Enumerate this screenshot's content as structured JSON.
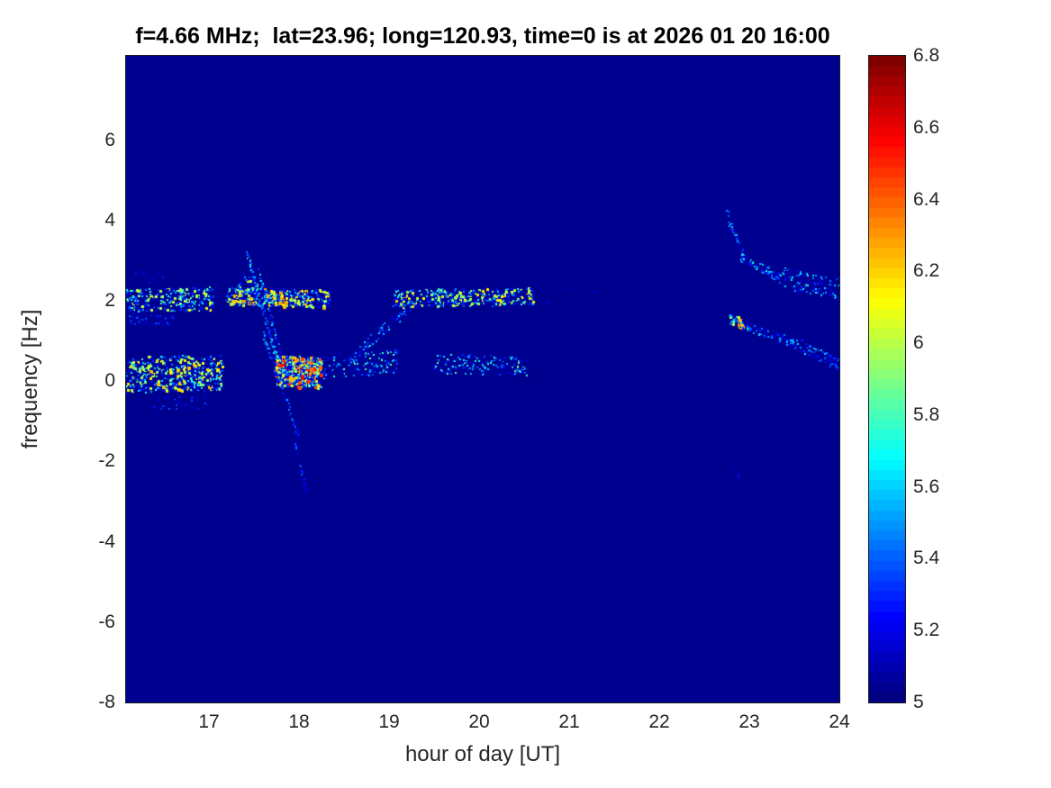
{
  "chart_data": {
    "type": "heatmap",
    "title": "f=4.66 MHz;  lat=23.96; long=120.93, time=0 is at 2026 01 20 16:00",
    "xlabel": "hour of day [UT]",
    "ylabel": "frequency [Hz]",
    "xlim": [
      16.08,
      24
    ],
    "ylim": [
      -8,
      8.1
    ],
    "xticks": [
      17,
      18,
      19,
      20,
      21,
      22,
      23,
      24
    ],
    "yticks": [
      -8,
      -6,
      -4,
      -2,
      0,
      2,
      4,
      6
    ],
    "grid": false,
    "colorbar": {
      "min": 5,
      "max": 6.8,
      "ticks": [
        5,
        5.2,
        5.4,
        5.6,
        5.8,
        6,
        6.2,
        6.4,
        6.6,
        6.8
      ],
      "colormap": "jet",
      "levels": 64
    },
    "background_value": 5,
    "background_color": "#00008f",
    "features": [
      {
        "x0": 16.08,
        "x1": 17.05,
        "y0": 2.0,
        "y1": 2.05,
        "jit": 0.28,
        "n": 450,
        "vmin": 5.05,
        "vmax": 6.15
      },
      {
        "x0": 16.08,
        "x1": 16.6,
        "y0": 1.55,
        "y1": 1.5,
        "jit": 0.15,
        "n": 70,
        "vmin": 5.05,
        "vmax": 5.45
      },
      {
        "x0": 16.15,
        "x1": 16.5,
        "y0": 2.6,
        "y1": 2.55,
        "jit": 0.15,
        "n": 18,
        "vmin": 5.05,
        "vmax": 5.3
      },
      {
        "x0": 16.08,
        "x1": 17.15,
        "y0": 0.15,
        "y1": 0.2,
        "jit": 0.45,
        "n": 700,
        "vmin": 5.05,
        "vmax": 6.25
      },
      {
        "x0": 16.3,
        "x1": 17.0,
        "y0": -0.6,
        "y1": -0.5,
        "jit": 0.2,
        "n": 60,
        "vmin": 5.05,
        "vmax": 5.4
      },
      {
        "x0": 17.2,
        "x1": 18.35,
        "y0": 2.1,
        "y1": 2.05,
        "jit": 0.22,
        "n": 450,
        "vmin": 5.1,
        "vmax": 6.3
      },
      {
        "x0": 17.32,
        "x1": 17.55,
        "y0": 2.45,
        "y1": 2.25,
        "jit": 0.25,
        "n": 70,
        "vmin": 5.15,
        "vmax": 6.1
      },
      {
        "x0": 17.42,
        "x1": 17.75,
        "y0": 3.2,
        "y1": 0.6,
        "jit": 0.12,
        "n": 150,
        "vmin": 5.05,
        "vmax": 5.8
      },
      {
        "x0": 17.55,
        "x1": 17.85,
        "y0": 2.8,
        "y1": 0.2,
        "jit": 0.1,
        "n": 110,
        "vmin": 5.05,
        "vmax": 5.7
      },
      {
        "x0": 17.6,
        "x1": 18.0,
        "y0": 1.2,
        "y1": -1.4,
        "jit": 0.12,
        "n": 120,
        "vmin": 5.05,
        "vmax": 5.6
      },
      {
        "x0": 17.95,
        "x1": 18.08,
        "y0": -1.4,
        "y1": -2.75,
        "jit": 0.08,
        "n": 45,
        "vmin": 5.05,
        "vmax": 5.45
      },
      {
        "x0": 17.75,
        "x1": 18.25,
        "y0": 0.25,
        "y1": 0.2,
        "jit": 0.38,
        "n": 540,
        "vmin": 5.15,
        "vmax": 6.6
      },
      {
        "x0": 18.25,
        "x1": 19.1,
        "y0": 0.35,
        "y1": 0.5,
        "jit": 0.3,
        "n": 200,
        "vmin": 5.05,
        "vmax": 5.9
      },
      {
        "x0": 18.55,
        "x1": 19.25,
        "y0": 0.5,
        "y1": 1.9,
        "jit": 0.15,
        "n": 130,
        "vmin": 5.05,
        "vmax": 5.75
      },
      {
        "x0": 19.05,
        "x1": 20.6,
        "y0": 2.05,
        "y1": 2.1,
        "jit": 0.22,
        "n": 520,
        "vmin": 5.05,
        "vmax": 6.2
      },
      {
        "x0": 19.5,
        "x1": 20.55,
        "y0": 0.45,
        "y1": 0.35,
        "jit": 0.25,
        "n": 250,
        "vmin": 5.05,
        "vmax": 5.9
      },
      {
        "x0": 20.7,
        "x1": 21.6,
        "y0": 2.05,
        "y1": 2.0,
        "jit": 0.3,
        "n": 12,
        "vmin": 5.05,
        "vmax": 5.3
      },
      {
        "x0": 22.75,
        "x1": 22.95,
        "y0": 4.2,
        "y1": 3.05,
        "jit": 0.15,
        "n": 55,
        "vmin": 5.05,
        "vmax": 5.6
      },
      {
        "x0": 22.9,
        "x1": 23.35,
        "y0": 3.1,
        "y1": 2.55,
        "jit": 0.12,
        "n": 100,
        "vmin": 5.05,
        "vmax": 5.8
      },
      {
        "x0": 23.35,
        "x1": 24.0,
        "y0": 2.55,
        "y1": 2.3,
        "jit": 0.28,
        "n": 150,
        "vmin": 5.05,
        "vmax": 5.8
      },
      {
        "x0": 22.78,
        "x1": 22.92,
        "y0": 1.55,
        "y1": 1.45,
        "jit": 0.12,
        "n": 40,
        "vmin": 5.3,
        "vmax": 6.45
      },
      {
        "x0": 22.92,
        "x1": 23.5,
        "y0": 1.4,
        "y1": 0.95,
        "jit": 0.12,
        "n": 120,
        "vmin": 5.05,
        "vmax": 5.7
      },
      {
        "x0": 23.5,
        "x1": 24.0,
        "y0": 0.95,
        "y1": 0.4,
        "jit": 0.16,
        "n": 120,
        "vmin": 5.05,
        "vmax": 5.7
      },
      {
        "x0": 22.8,
        "x1": 22.9,
        "y0": -2.2,
        "y1": -2.4,
        "jit": 0.1,
        "n": 8,
        "vmin": 5.05,
        "vmax": 5.3
      }
    ]
  }
}
